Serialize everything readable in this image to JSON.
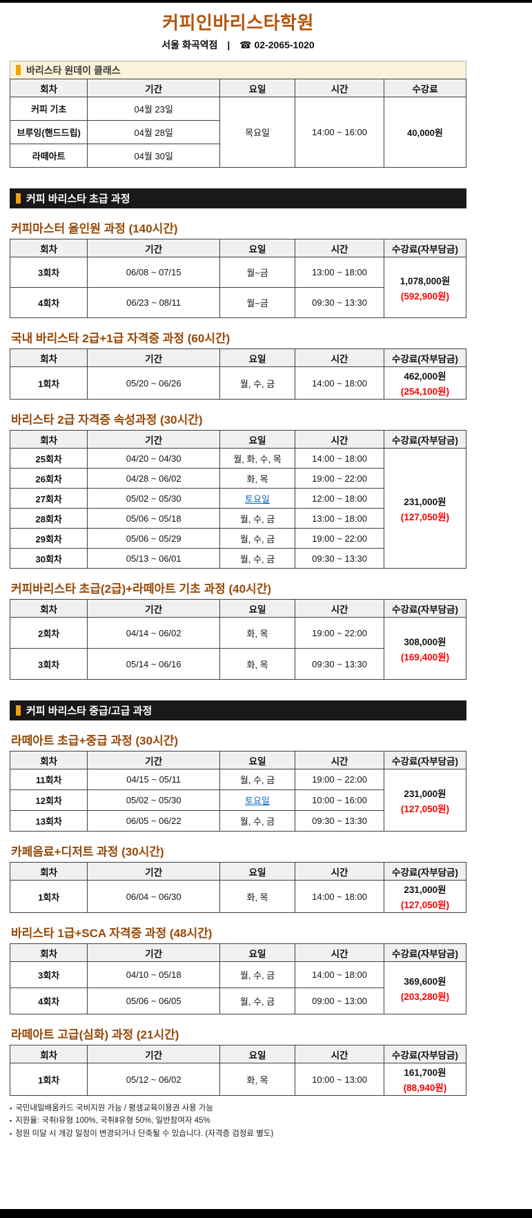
{
  "colors": {
    "brand_brown": "#b4540d",
    "course_title_brown": "#974806",
    "copay_red": "#fe0000",
    "saturday_link_blue": "#0563c1",
    "marker_gold": "#f0a30a",
    "section_bar_dark": "#191919",
    "oneday_band_cream": "#fbf2da",
    "table_header_gray": "#f0f0f0"
  },
  "header": {
    "title": "커피인바리스타학원",
    "location": "서울 화곡역점",
    "divider": "|",
    "phone_icon": "☎",
    "phone": "02-2065-1020"
  },
  "columns": {
    "oneday": [
      "회차",
      "기간",
      "요일",
      "시간",
      "수강료"
    ],
    "course": [
      "회차",
      "기간",
      "요일",
      "시간",
      "수강료(자부담금)"
    ]
  },
  "oneday": {
    "section_label": "바리스타 원데이 클래스",
    "rows": [
      {
        "name": "커피 기초",
        "period": "04월 23일"
      },
      {
        "name": "브루잉(핸드드립)",
        "period": "04월 28일"
      },
      {
        "name": "라떼아트",
        "period": "04월 30일"
      }
    ],
    "day": "목요일",
    "time": "14:00 ~ 16:00",
    "fee": "40,000원"
  },
  "section_bars": [
    {
      "label": "커피 바리스타 초급 과정"
    },
    {
      "label": "커피 바리스타 중급/고급 과정"
    }
  ],
  "courses": [
    {
      "title": "커피마스터 올인원 과정 (140시간)",
      "fee": {
        "price": "1,078,000원",
        "copay": "(592,900원)"
      },
      "rows": [
        {
          "round": "3회차",
          "period": "06/08 ~ 07/15",
          "days": "월~금",
          "time": "13:00 ~ 18:00"
        },
        {
          "round": "4회차",
          "period": "06/23 ~ 08/11",
          "days": "월~금",
          "time": "09:30 ~ 13:30"
        }
      ]
    },
    {
      "title": "국내 바리스타 2급+1급 자격증 과정 (60시간)",
      "fee": {
        "price": "462,000원",
        "copay": "(254,100원)"
      },
      "rows": [
        {
          "round": "1회차",
          "period": "05/20 ~ 06/26",
          "days": "월, 수, 금",
          "time": "14:00 ~ 18:00"
        }
      ]
    },
    {
      "title": "바리스타 2급 자격증 속성과정 (30시간)",
      "fee": {
        "price": "231,000원",
        "copay": "(127,050원)"
      },
      "rows": [
        {
          "round": "25회차",
          "period": "04/20 ~ 04/30",
          "days": "월, 화, 수, 목",
          "time": "14:00 ~ 18:00"
        },
        {
          "round": "26회차",
          "period": "04/28 ~ 06/02",
          "days": "화, 목",
          "time": "19:00 ~ 22:00"
        },
        {
          "round": "27회차",
          "period": "05/02 ~ 05/30",
          "days": "토요일",
          "time": "12:00 ~ 18:00",
          "link": true
        },
        {
          "round": "28회차",
          "period": "05/06 ~ 05/18",
          "days": "월, 수, 금",
          "time": "13:00 ~ 18:00"
        },
        {
          "round": "29회차",
          "period": "05/06 ~ 05/29",
          "days": "월, 수, 금",
          "time": "19:00 ~ 22:00"
        },
        {
          "round": "30회차",
          "period": "05/13 ~ 06/01",
          "days": "월, 수, 금",
          "time": "09:30 ~ 13:30"
        }
      ]
    },
    {
      "title": "커피바리스타 초급(2급)+라떼아트 기초 과정 (40시간)",
      "fee": {
        "price": "308,000원",
        "copay": "(169,400원)"
      },
      "rows": [
        {
          "round": "2회차",
          "period": "04/14 ~ 06/02",
          "days": "화, 목",
          "time": "19:00 ~ 22:00"
        },
        {
          "round": "3회차",
          "period": "05/14 ~ 06/16",
          "days": "화, 목",
          "time": "09:30 ~ 13:30"
        }
      ]
    },
    {
      "title": "라떼아트 초급+중급 과정 (30시간)",
      "fee": {
        "price": "231,000원",
        "copay": "(127,050원)"
      },
      "rows": [
        {
          "round": "11회차",
          "period": "04/15 ~ 05/11",
          "days": "월, 수, 금",
          "time": "19:00 ~ 22:00"
        },
        {
          "round": "12회차",
          "period": "05/02 ~ 05/30",
          "days": "토요일",
          "time": "10:00 ~ 16:00",
          "link": true
        },
        {
          "round": "13회차",
          "period": "06/05 ~ 06/22",
          "days": "월, 수, 금",
          "time": "09:30 ~ 13:30"
        }
      ]
    },
    {
      "title": "카페음료+디저트 과정 (30시간)",
      "fee": {
        "price": "231,000원",
        "copay": "(127,050원)"
      },
      "rows": [
        {
          "round": "1회차",
          "period": "06/04 ~ 06/30",
          "days": "화, 목",
          "time": "14:00 ~ 18:00"
        }
      ]
    },
    {
      "title": "바리스타 1급+SCA 자격증 과정 (48시간)",
      "fee": {
        "price": "369,600원",
        "copay": "(203,280원)"
      },
      "rows": [
        {
          "round": "3회차",
          "period": "04/10 ~ 05/18",
          "days": "월, 수, 금",
          "time": "14:00 ~ 18:00"
        },
        {
          "round": "4회차",
          "period": "05/06 ~ 06/05",
          "days": "월, 수, 금",
          "time": "09:00 ~ 13:00"
        }
      ]
    },
    {
      "title": "라떼아트 고급(심화) 과정 (21시간)",
      "fee": {
        "price": "161,700원",
        "copay": "(88,940원)"
      },
      "rows": [
        {
          "round": "1회차",
          "period": "05/12 ~ 06/02",
          "days": "화, 목",
          "time": "10:00 ~ 13:00"
        }
      ]
    }
  ],
  "footnote_bullet": "▪",
  "footnotes": [
    "국민내일배움카드 국비지원 가능 / 평생교육이용권 사용 가능",
    "지원율: 국취Ⅰ유형 100%, 국취Ⅱ유형 50%, 일반참여자 45%",
    "정원 미달 시 개강 일정이 변경되거나 단축될 수 있습니다. (자격증 검정료 별도)"
  ]
}
